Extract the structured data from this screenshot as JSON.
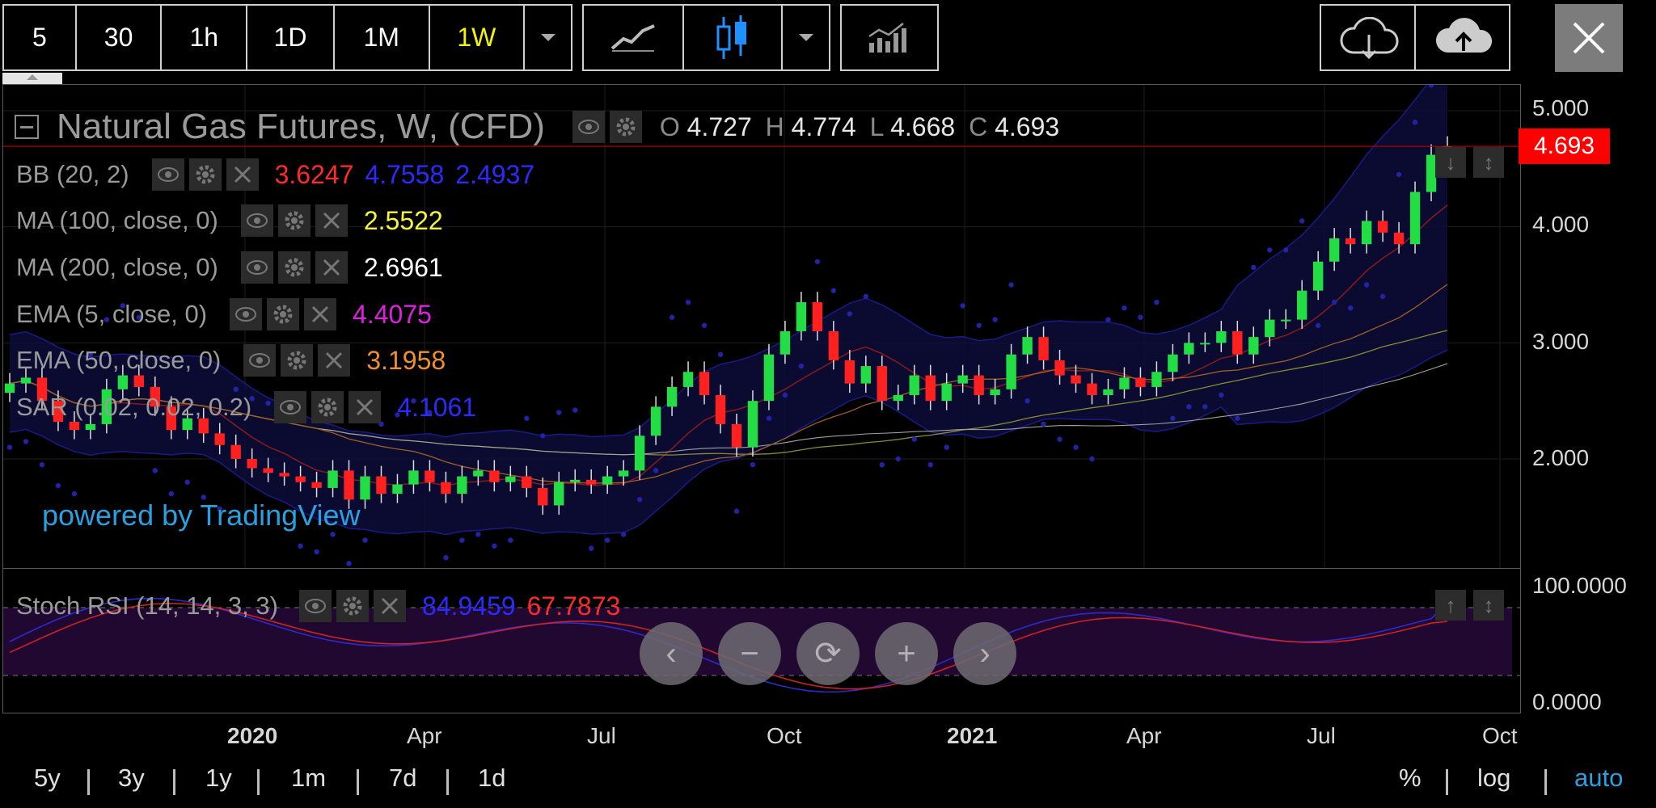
{
  "toolbar": {
    "intervals": [
      "5",
      "30",
      "1h",
      "1D",
      "1M",
      "1W"
    ],
    "active_interval": "1W"
  },
  "chart": {
    "symbol": "Natural Gas Futures, W, (CFD)",
    "ohlc": {
      "o_label": "O",
      "o": "4.727",
      "h_label": "H",
      "h": "4.774",
      "l_label": "L",
      "l": "4.668",
      "c_label": "C",
      "c": "4.693"
    },
    "price_badge": "4.693",
    "watermark": "powered by TradingView",
    "y_ticks": [
      "5.000",
      "4.000",
      "3.000",
      "2.000"
    ],
    "x_ticks": [
      "2020",
      "Apr",
      "Jul",
      "Oct",
      "2021",
      "Apr",
      "Jul",
      "Oct"
    ]
  },
  "indicators": [
    {
      "name": "BB (20, 2)",
      "values": [
        {
          "text": "3.6247",
          "color": "#ff2a2a"
        },
        {
          "text": "4.7558",
          "color": "#2b2bff"
        },
        {
          "text": "2.4937",
          "color": "#2b2bff"
        }
      ]
    },
    {
      "name": "MA (100, close, 0)",
      "values": [
        {
          "text": "2.5522",
          "color": "#f5f53a"
        }
      ]
    },
    {
      "name": "MA (200, close, 0)",
      "values": [
        {
          "text": "2.6961",
          "color": "#ffffff"
        }
      ]
    },
    {
      "name": "EMA (5, close, 0)",
      "values": [
        {
          "text": "4.4075",
          "color": "#e020e0"
        }
      ]
    },
    {
      "name": "EMA (50, close, 0)",
      "values": [
        {
          "text": "3.1958",
          "color": "#f0902a"
        }
      ]
    },
    {
      "name": "SAR (0.02, 0.02, 0.2)",
      "values": [
        {
          "text": "4.1061",
          "color": "#2b2bff"
        }
      ]
    }
  ],
  "stoch": {
    "name": "Stoch RSI (14, 14, 3, 3)",
    "k": "84.9459",
    "d": "67.7873",
    "y_ticks": [
      "100.0000",
      "0.0000"
    ]
  },
  "range_buttons": [
    "5y",
    "3y",
    "1y",
    "1m",
    "7d",
    "1d"
  ],
  "scale_buttons": [
    "%",
    "log",
    "auto"
  ],
  "colors": {
    "up": "#22dd44",
    "down": "#ff2020",
    "accent": "#2aa0e0",
    "badge": "#ff0000"
  },
  "chart_data": {
    "type": "candlestick",
    "y_range": [
      1.3,
      5.2
    ],
    "closes": [
      2.65,
      2.7,
      2.5,
      2.32,
      2.25,
      2.3,
      2.6,
      2.72,
      2.62,
      2.45,
      2.25,
      2.35,
      2.22,
      2.12,
      2.0,
      1.92,
      1.88,
      1.85,
      1.8,
      1.75,
      1.9,
      1.65,
      1.85,
      1.7,
      1.78,
      1.9,
      1.8,
      1.7,
      1.85,
      1.9,
      1.8,
      1.85,
      1.75,
      1.6,
      1.8,
      1.82,
      1.78,
      1.85,
      1.9,
      2.2,
      2.45,
      2.62,
      2.75,
      2.55,
      2.3,
      2.1,
      2.5,
      2.9,
      3.1,
      3.35,
      3.1,
      2.85,
      2.65,
      2.8,
      2.5,
      2.55,
      2.72,
      2.5,
      2.65,
      2.72,
      2.55,
      2.6,
      2.9,
      3.05,
      2.85,
      2.72,
      2.65,
      2.55,
      2.6,
      2.7,
      2.62,
      2.75,
      2.9,
      3.0,
      3.0,
      3.1,
      2.9,
      3.05,
      3.2,
      3.2,
      3.45,
      3.7,
      3.9,
      3.85,
      4.05,
      3.95,
      3.85,
      4.3,
      4.62,
      4.69
    ]
  }
}
